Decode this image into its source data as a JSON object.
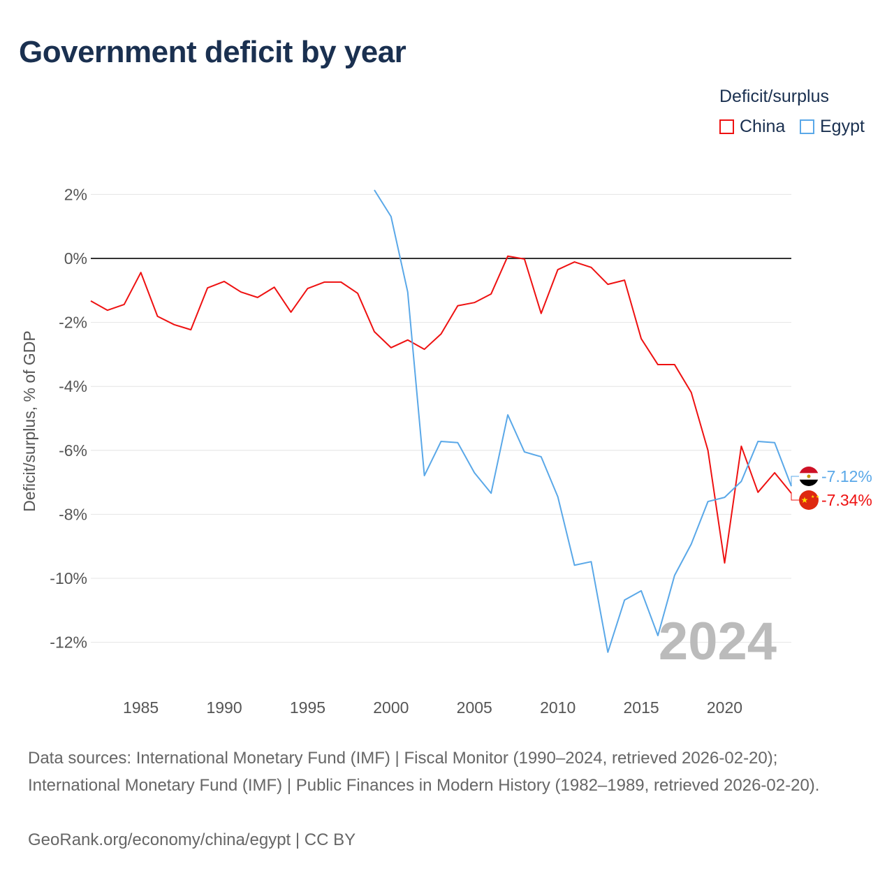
{
  "title": "Government deficit by year",
  "legend": {
    "title": "Deficit/surplus",
    "items": [
      {
        "label": "China",
        "color": "#ee1111"
      },
      {
        "label": "Egypt",
        "color": "#5aa8e8"
      }
    ]
  },
  "footer": {
    "sources": "Data sources: International Monetary Fund (IMF) | Fiscal Monitor (1990–2024, retrieved 2026-02-20); International Monetary Fund (IMF) | Public Finances in Modern History (1982–1989, retrieved 2026-02-20).",
    "credit": "GeoRank.org/economy/china/egypt | CC BY"
  },
  "chart_data": {
    "type": "line",
    "title": "Government deficit by year",
    "ylabel": "Deficit/surplus, % of GDP",
    "xlabel": "",
    "year_label": "2024",
    "xlim": [
      1982,
      2024
    ],
    "ylim": [
      -13.2,
      2.4
    ],
    "xticks": [
      1985,
      1990,
      1995,
      2000,
      2005,
      2010,
      2015,
      2020
    ],
    "yticks": [
      2,
      0,
      -2,
      -4,
      -6,
      -8,
      -10,
      -12
    ],
    "ytick_labels": [
      "2%",
      "0%",
      "-2%",
      "-4%",
      "-6%",
      "-8%",
      "-10%",
      "-12%"
    ],
    "series": [
      {
        "name": "China",
        "color": "#ee1111",
        "end_label": "-7.34%",
        "start": 1982,
        "values": [
          -1.33,
          -1.62,
          -1.44,
          -0.44,
          -1.81,
          -2.07,
          -2.23,
          -0.92,
          -0.72,
          -1.05,
          -1.22,
          -0.9,
          -1.68,
          -0.94,
          -0.74,
          -0.74,
          -1.09,
          -2.29,
          -2.79,
          -2.55,
          -2.84,
          -2.36,
          -1.48,
          -1.38,
          -1.11,
          0.07,
          -0.02,
          -1.72,
          -0.35,
          -0.11,
          -0.28,
          -0.81,
          -0.68,
          -2.51,
          -3.32,
          -3.32,
          -4.19,
          -6.0,
          -9.52,
          -5.87,
          -7.31,
          -6.7,
          -7.34
        ]
      },
      {
        "name": "Egypt",
        "color": "#5aa8e8",
        "end_label": "-7.12%",
        "start": 1999,
        "values": [
          2.14,
          1.31,
          -1.05,
          -6.79,
          -5.72,
          -5.76,
          -6.7,
          -7.34,
          -4.89,
          -6.05,
          -6.2,
          -7.45,
          -9.59,
          -9.48,
          -12.31,
          -10.68,
          -10.39,
          -11.79,
          -9.91,
          -8.93,
          -7.6,
          -7.47,
          -6.97,
          -5.72,
          -5.76,
          -7.12
        ]
      }
    ]
  }
}
